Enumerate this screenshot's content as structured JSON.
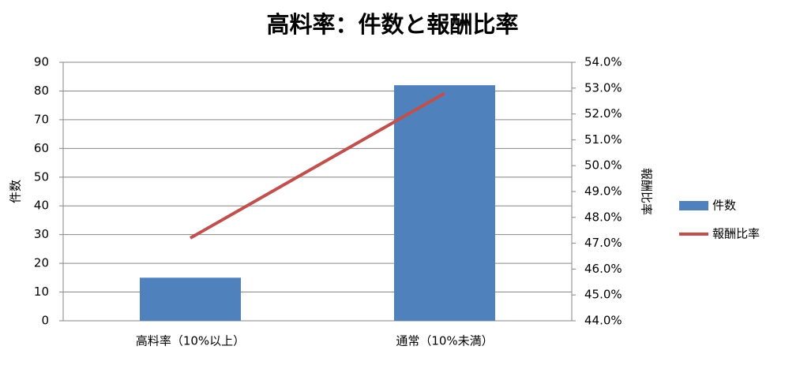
{
  "chart_data": {
    "type": "bar",
    "title": "高料率：件数と報酬比率",
    "categories": [
      "高料率（10%以上）",
      "通常（10%未満）"
    ],
    "series": [
      {
        "name": "件数",
        "type": "bar",
        "color": "#4f81bd",
        "values": [
          15,
          82
        ]
      },
      {
        "name": "報酬比率",
        "type": "line",
        "color": "#c0504d",
        "axis": "y2",
        "values": [
          47.2,
          52.8
        ]
      }
    ],
    "ylabel": "件数",
    "y2label": "報酬比率",
    "ylim": [
      0,
      90
    ],
    "yticks": [
      0,
      10,
      20,
      30,
      40,
      50,
      60,
      70,
      80,
      90
    ],
    "y2lim": [
      44,
      54
    ],
    "y2ticks": [
      {
        "value": 44,
        "label": "44.0%"
      },
      {
        "value": 45,
        "label": "45.0%"
      },
      {
        "value": 46,
        "label": "46.0%"
      },
      {
        "value": 47,
        "label": "47.0%"
      },
      {
        "value": 48,
        "label": "48.0%"
      },
      {
        "value": 49,
        "label": "49.0%"
      },
      {
        "value": 50,
        "label": "50.0%"
      },
      {
        "value": 51,
        "label": "51.0%"
      },
      {
        "value": 52,
        "label": "52.0%"
      },
      {
        "value": 53,
        "label": "53.0%"
      },
      {
        "value": 54,
        "label": "54.0%"
      }
    ],
    "grid": true,
    "legend": "right"
  }
}
